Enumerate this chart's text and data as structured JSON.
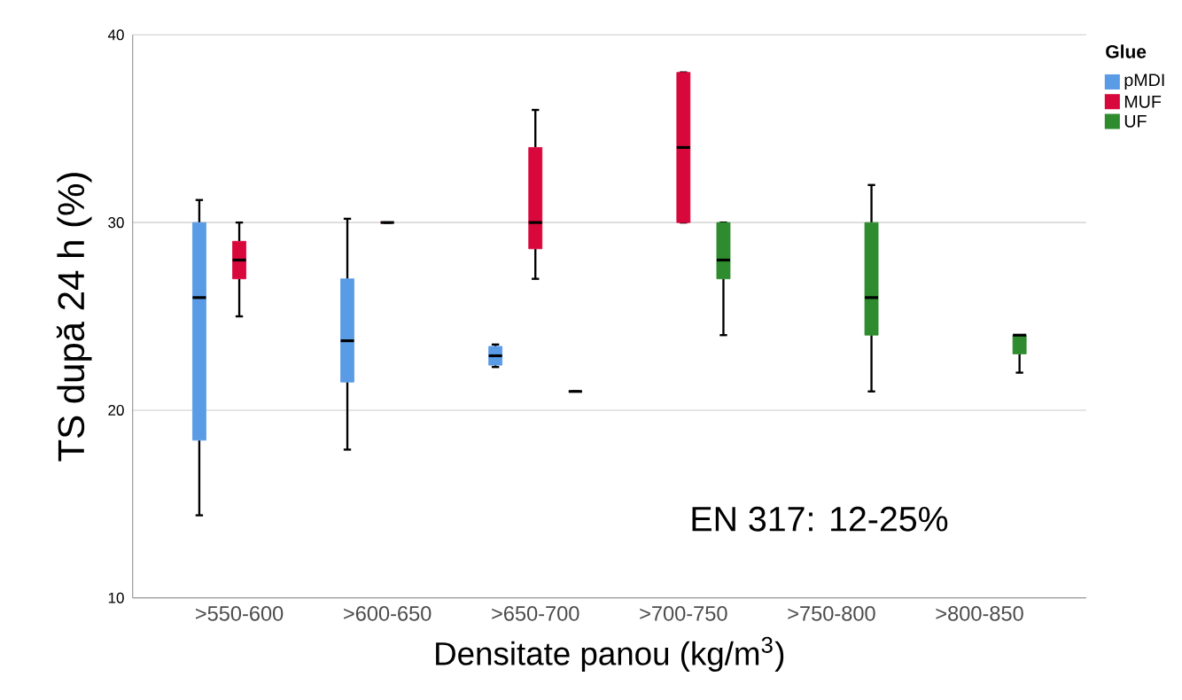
{
  "chart_data": {
    "type": "box",
    "xlabel": "Densitate panou (kg/m$^{3}$)",
    "ylabel": "TS după 24 h (%)",
    "legend_title": "Glue",
    "categories": [
      ">550-600",
      ">600-650",
      ">650-700",
      ">700-750",
      ">750-800",
      ">800-850"
    ],
    "series": [
      {
        "name": "pMDI",
        "color": "#5a9be6",
        "boxes": [
          {
            "low": 14.4,
            "q1": 18.4,
            "median": 26,
            "q3": 30,
            "high": 31.2
          },
          {
            "low": 17.9,
            "q1": 21.5,
            "median": 23.7,
            "q3": 27,
            "high": 30.2
          },
          {
            "low": 22.3,
            "q1": 22.4,
            "median": 22.9,
            "q3": 23.4,
            "high": 23.5
          },
          null,
          null,
          null
        ]
      },
      {
        "name": "MUF",
        "color": "#d9083c",
        "boxes": [
          {
            "low": 25,
            "q1": 27,
            "median": 28,
            "q3": 29,
            "high": 30
          },
          {
            "low": 30,
            "q1": 30,
            "median": 30,
            "q3": 30,
            "high": 30
          },
          {
            "low": 27,
            "q1": 28.6,
            "median": 30,
            "q3": 34,
            "high": 36
          },
          {
            "low": 30,
            "q1": 30,
            "median": 34,
            "q3": 38,
            "high": 38
          },
          null,
          null
        ]
      },
      {
        "name": "UF",
        "color": "#2e8b2e",
        "boxes": [
          null,
          null,
          {
            "low": 21,
            "q1": 21,
            "median": 21,
            "q3": 21,
            "high": 21
          },
          {
            "low": 24,
            "q1": 27,
            "median": 28,
            "q3": 30,
            "high": 30
          },
          {
            "low": 21,
            "q1": 24,
            "median": 26,
            "q3": 30,
            "high": 32
          },
          {
            "low": 22,
            "q1": 23,
            "median": 24,
            "q3": 24,
            "high": 24
          }
        ]
      }
    ],
    "ylim": [
      10,
      40
    ],
    "yticks": [
      10,
      20,
      30,
      40
    ],
    "grid": "y",
    "legend": "top right",
    "annotations": [
      "EN 317: 12-25%"
    ]
  }
}
